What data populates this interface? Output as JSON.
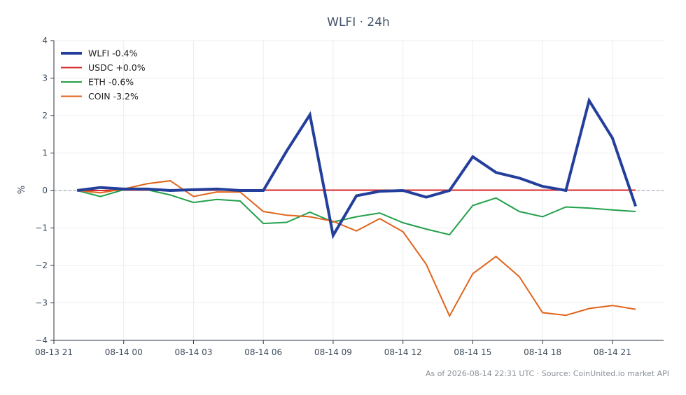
{
  "chart_data": {
    "type": "line",
    "title": "WLFI · 24h",
    "ylabel": "%",
    "xlabel": "",
    "ylim": [
      -4,
      4
    ],
    "yticks": [
      -4,
      -3,
      -2,
      -1,
      0,
      1,
      2,
      3,
      4
    ],
    "ytick_labels": [
      "−4",
      "−3",
      "−2",
      "−1",
      "0",
      "1",
      "2",
      "3",
      "4"
    ],
    "xlim": [
      -1,
      25.2
    ],
    "xticks": [
      -1,
      2,
      5,
      8,
      11,
      14,
      17,
      20,
      23
    ],
    "xtick_labels": [
      "08-13 21",
      "08-14 00",
      "08-14 03",
      "08-14 06",
      "08-14 09",
      "08-14 12",
      "08-14 15",
      "08-14 18",
      "08-14 21"
    ],
    "x_unit": "hours from 08-13 22:00 UTC",
    "zero_line": true,
    "grid": true,
    "legend_position": "top-left",
    "x": [
      0,
      1,
      2,
      3,
      4,
      5,
      6,
      7,
      8,
      9,
      10,
      11,
      12,
      13,
      14,
      15,
      16,
      17,
      18,
      19,
      20,
      21,
      22,
      23,
      24
    ],
    "series": [
      {
        "name": "WLFI -0.4%",
        "color": "#233f9b",
        "width": 4,
        "values": [
          0.0,
          0.08,
          0.04,
          0.04,
          0.0,
          0.02,
          0.04,
          0.0,
          0.0,
          1.05,
          2.02,
          -1.2,
          -0.14,
          -0.02,
          0.0,
          -0.18,
          0.0,
          0.9,
          0.48,
          0.33,
          0.11,
          0.0,
          2.4,
          1.4,
          -0.42
        ]
      },
      {
        "name": "USDC +0.0%",
        "color": "#d62728",
        "width": 2,
        "values": [
          0.0,
          0.0,
          0.01,
          0.01,
          0.0,
          0.0,
          0.01,
          0.01,
          0.01,
          0.01,
          0.01,
          0.01,
          0.01,
          0.01,
          0.01,
          0.01,
          0.01,
          0.01,
          0.01,
          0.01,
          0.01,
          0.01,
          0.01,
          0.01,
          0.01
        ]
      },
      {
        "name": "ETH -0.6%",
        "color": "#22a04a",
        "width": 2,
        "values": [
          0.0,
          -0.16,
          0.02,
          0.02,
          -0.12,
          -0.32,
          -0.24,
          -0.28,
          -0.88,
          -0.85,
          -0.58,
          -0.84,
          -0.7,
          -0.6,
          -0.86,
          -1.03,
          -1.18,
          -0.4,
          -0.2,
          -0.56,
          -0.7,
          -0.44,
          -0.47,
          -0.52,
          -0.56
        ]
      },
      {
        "name": "COIN -3.2%",
        "color": "#e0641c",
        "width": 2,
        "values": [
          0.0,
          -0.06,
          0.04,
          0.18,
          0.26,
          -0.16,
          -0.04,
          -0.04,
          -0.56,
          -0.66,
          -0.7,
          -0.82,
          -1.08,
          -0.75,
          -1.1,
          -1.97,
          -3.35,
          -2.22,
          -1.76,
          -2.3,
          -3.26,
          -3.33,
          -3.15,
          -3.07,
          -3.17
        ]
      }
    ],
    "footer": "As of 2026-08-14 22:31 UTC · Source: CoinUnited.io market API"
  }
}
